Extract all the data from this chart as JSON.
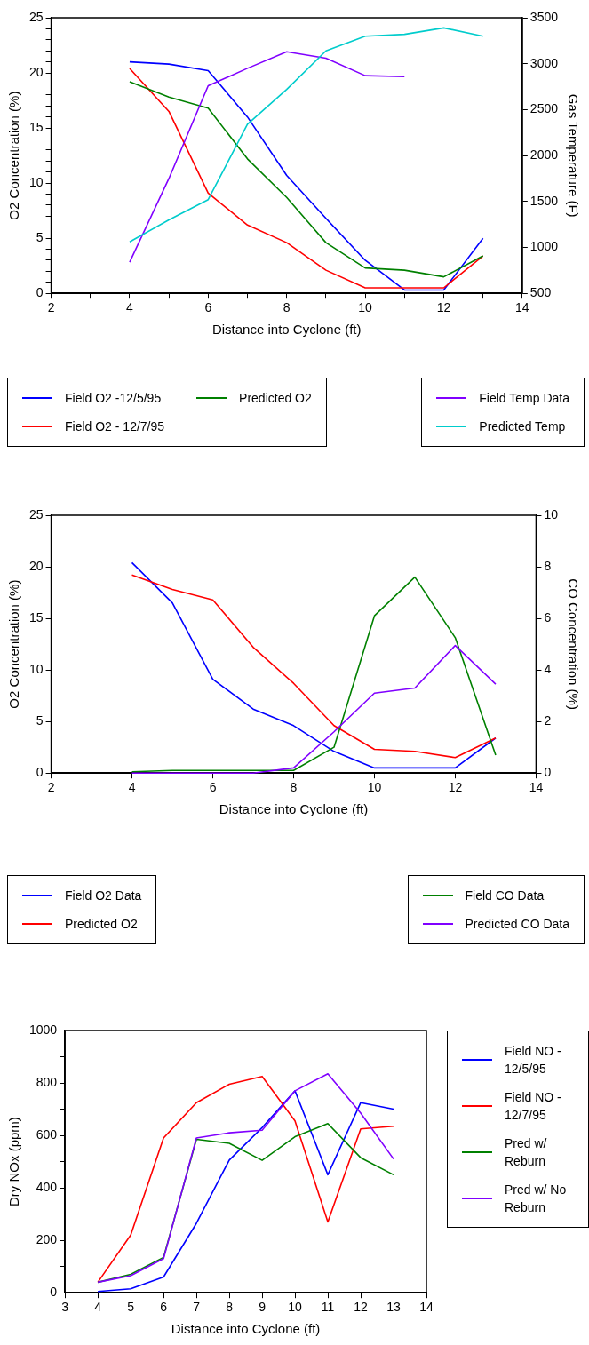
{
  "chart_data": [
    {
      "type": "line",
      "xlabel": "Distance into Cyclone (ft)",
      "ylabel": "O2 Concentration (%)",
      "y2label": "Gas Temperature (F)",
      "x": [
        4,
        5,
        6,
        7,
        8,
        9,
        10,
        11,
        12,
        13
      ],
      "xlim": [
        2,
        14
      ],
      "xticks": [
        2,
        {
          "value": 3,
          "label": null
        },
        4,
        {
          "value": 5,
          "label": null
        },
        6,
        {
          "value": 7,
          "label": null
        },
        8,
        {
          "value": 9,
          "label": null
        },
        10,
        {
          "value": 11,
          "label": null
        },
        12,
        {
          "value": 13,
          "label": null
        },
        14
      ],
      "ylim": [
        0,
        25
      ],
      "yticks": [
        0,
        {
          "value": 1,
          "label": null
        },
        {
          "value": 2,
          "label": null
        },
        {
          "value": 3,
          "label": null
        },
        {
          "value": 4,
          "label": null
        },
        5,
        {
          "value": 6,
          "label": null
        },
        {
          "value": 7,
          "label": null
        },
        {
          "value": 8,
          "label": null
        },
        {
          "value": 9,
          "label": null
        },
        10,
        {
          "value": 11,
          "label": null
        },
        {
          "value": 12,
          "label": null
        },
        {
          "value": 13,
          "label": null
        },
        {
          "value": 14,
          "label": null
        },
        15,
        {
          "value": 16,
          "label": null
        },
        {
          "value": 17,
          "label": null
        },
        {
          "value": 18,
          "label": null
        },
        {
          "value": 19,
          "label": null
        },
        20,
        {
          "value": 21,
          "label": null
        },
        {
          "value": 22,
          "label": null
        },
        {
          "value": 23,
          "label": null
        },
        {
          "value": 24,
          "label": null
        },
        25
      ],
      "y2lim": [
        500,
        3500
      ],
      "y2ticks": [
        500,
        1000,
        1500,
        2000,
        2500,
        3000,
        3500
      ],
      "grid": false,
      "legend": "bottom",
      "marker": "none",
      "line_style": "solid",
      "series": [
        {
          "name": "Field O2 -12/5/95",
          "color": "#0000ff",
          "values": [
            21,
            20.8,
            20.2,
            16,
            10.7,
            6.8,
            3,
            0.3,
            0.3,
            5
          ]
        },
        {
          "name": "Field O2 - 12/7/95",
          "color": "#ff0000",
          "values": [
            20.4,
            16.5,
            9.1,
            6.2,
            4.6,
            2.1,
            0.5,
            0.5,
            0.5,
            3.4
          ]
        },
        {
          "name": "Predicted O2",
          "color": "#008000",
          "values": [
            19.2,
            17.8,
            16.8,
            12.2,
            8.7,
            4.6,
            2.3,
            2.1,
            1.5,
            3.4
          ]
        },
        {
          "name": "Field Temp Data",
          "color": "#8000ff",
          "axis": "y2",
          "values": [
            840,
            1750,
            2760,
            2950,
            3130,
            3060,
            2870,
            2860,
            null,
            null
          ]
        },
        {
          "name": "Predicted Temp",
          "color": "#00cccc",
          "axis": "y2",
          "values": [
            1060,
            1300,
            1520,
            2340,
            2720,
            3140,
            3300,
            3320,
            3390,
            3300
          ]
        }
      ]
    },
    {
      "type": "line",
      "xlabel": "Distance into Cyclone (ft)",
      "ylabel": "O2 Concentration (%)",
      "y2label": "CO Concentration (%)",
      "x": [
        4,
        5,
        6,
        7,
        8,
        9,
        10,
        11,
        12,
        13
      ],
      "xlim": [
        2,
        14
      ],
      "xticks": [
        2,
        4,
        6,
        8,
        10,
        12,
        14
      ],
      "ylim": [
        0,
        25
      ],
      "yticks": [
        0,
        5,
        10,
        15,
        20,
        25
      ],
      "y2lim": [
        0,
        10
      ],
      "y2ticks": [
        0,
        2,
        4,
        6,
        8,
        10
      ],
      "grid": false,
      "legend": "bottom",
      "marker": "none",
      "line_style": "solid",
      "series": [
        {
          "name": "Field O2 Data",
          "color": "#0000ff",
          "values": [
            20.4,
            16.5,
            9.1,
            6.2,
            4.6,
            2.1,
            0.5,
            0.5,
            0.5,
            3.4
          ]
        },
        {
          "name": "Predicted O2",
          "color": "#ff0000",
          "values": [
            19.2,
            17.8,
            16.8,
            12.2,
            8.7,
            4.6,
            2.3,
            2.1,
            1.5,
            3.4
          ]
        },
        {
          "name": "Field CO Data",
          "color": "#008000",
          "axis": "y2",
          "values": [
            0.05,
            0.1,
            0.1,
            0.1,
            0.1,
            1,
            6.1,
            7.6,
            5.25,
            0.7
          ]
        },
        {
          "name": "Predicted CO Data",
          "color": "#8000ff",
          "axis": "y2",
          "values": [
            0,
            0,
            0,
            0,
            0.2,
            1.6,
            3.1,
            3.3,
            4.95,
            3.45
          ]
        }
      ]
    },
    {
      "type": "line",
      "xlabel": "Distance into Cyclone (ft)",
      "ylabel": "Dry NOx (ppm)",
      "x": [
        4,
        5,
        6,
        7,
        8,
        9,
        10,
        11,
        12,
        13
      ],
      "xlim": [
        3,
        14
      ],
      "xticks": [
        3,
        4,
        5,
        6,
        7,
        8,
        9,
        10,
        11,
        12,
        13,
        14
      ],
      "ylim": [
        0,
        1000
      ],
      "yticks": [
        0,
        {
          "value": 100,
          "label": null
        },
        200,
        {
          "value": 300,
          "label": null
        },
        400,
        {
          "value": 500,
          "label": null
        },
        600,
        {
          "value": 700,
          "label": null
        },
        800,
        {
          "value": 900,
          "label": null
        },
        1000
      ],
      "grid": false,
      "legend": "right",
      "marker": "none",
      "line_style": "solid",
      "series": [
        {
          "name": "Field NO - 12/5/95",
          "color": "#0000ff",
          "values": [
            5,
            15,
            60,
            265,
            506,
            630,
            770,
            450,
            725,
            700
          ]
        },
        {
          "name": "Field NO - 12/7/95",
          "color": "#ff0000",
          "values": [
            40,
            220,
            590,
            725,
            795,
            825,
            655,
            270,
            625,
            635
          ]
        },
        {
          "name": "Pred w/ Reburn",
          "color": "#008000",
          "values": [
            40,
            70,
            135,
            585,
            570,
            505,
            595,
            645,
            515,
            450
          ]
        },
        {
          "name": "Pred w/ No Reburn",
          "color": "#8000ff",
          "values": [
            40,
            65,
            130,
            590,
            610,
            620,
            770,
            835,
            685,
            510
          ]
        }
      ]
    }
  ]
}
